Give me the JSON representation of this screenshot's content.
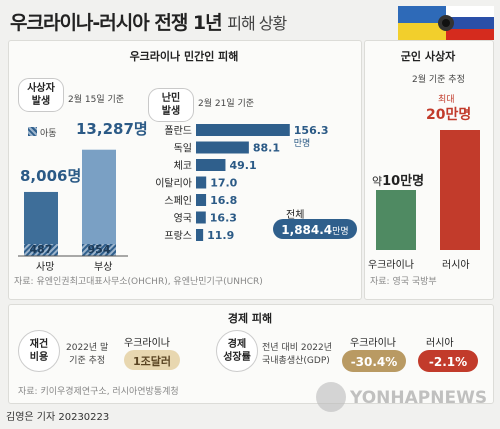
{
  "title": {
    "main": "우크라이나-러시아 전쟁 1년",
    "sub": "피해 상황"
  },
  "colors": {
    "ukraine_blue": "#2f5f8c",
    "russia_red": "#c23b2b",
    "gold": "#c9a25a",
    "tan": "#b99a63"
  },
  "civilian": {
    "header": "우크라이나 민간인 피해",
    "casualties": {
      "label": "사상자\n발생",
      "date": "2월 15일 기준",
      "child_legend": "아동",
      "death": {
        "label": "사망",
        "total": "8,006명",
        "children": "487"
      },
      "injury": {
        "label": "부상",
        "total": "13,287명",
        "children": "954"
      }
    },
    "refugees": {
      "label": "난민\n발생",
      "date": "2월 21일 기준",
      "total_label": "전체",
      "total_value": "1,884.4",
      "total_unit": "만명"
    },
    "source": "자료: 유엔인권최고대표사무소(OHCHR), 유엔난민기구(UNHCR)"
  },
  "military": {
    "header": "군인 사상자",
    "date": "2월 기준 추정",
    "ukraine": {
      "label": "우크라이나",
      "prefix": "약",
      "value": "10만명"
    },
    "russia": {
      "label": "러시아",
      "prefix": "최대",
      "value": "20만명"
    },
    "source": "자료: 영국 국방부"
  },
  "economy": {
    "header": "경제 피해",
    "rebuild": {
      "label": "재건\n비용",
      "note": "2022년 말\n기준 추정",
      "country": "우크라이나",
      "value": "1조달러"
    },
    "growth": {
      "label": "경제\n성장률",
      "note": "전년 대비 2022년\n국내총생산(GDP)",
      "ukraine_label": "우크라이나",
      "ukraine_value": "-30.4%",
      "russia_label": "러시아",
      "russia_value": "-2.1%"
    },
    "source": "자료: 키이우경제연구소, 러시아연방통계청"
  },
  "credit": "김영은 기자  20230223",
  "watermark": "YONHAPNEWS",
  "chart_data": [
    {
      "type": "bar",
      "title": "사상자 발생",
      "categories": [
        "사망",
        "부상"
      ],
      "series": [
        {
          "name": "전체",
          "values": [
            8006,
            13287
          ]
        },
        {
          "name": "아동",
          "values": [
            487,
            954
          ]
        }
      ]
    },
    {
      "type": "bar",
      "title": "난민 발생",
      "unit": "만명",
      "categories": [
        "폴란드",
        "독일",
        "체코",
        "이탈리아",
        "스페인",
        "영국",
        "프랑스"
      ],
      "values": [
        156.3,
        88.1,
        49.1,
        17.0,
        16.8,
        16.3,
        11.9
      ],
      "value_labels": [
        "156.3",
        "88.1",
        "49.1",
        "17.0",
        "16.8",
        "16.3",
        "11.9"
      ]
    },
    {
      "type": "bar",
      "title": "군인 사상자",
      "unit": "만명",
      "categories": [
        "우크라이나",
        "러시아"
      ],
      "values": [
        10,
        20
      ]
    }
  ]
}
